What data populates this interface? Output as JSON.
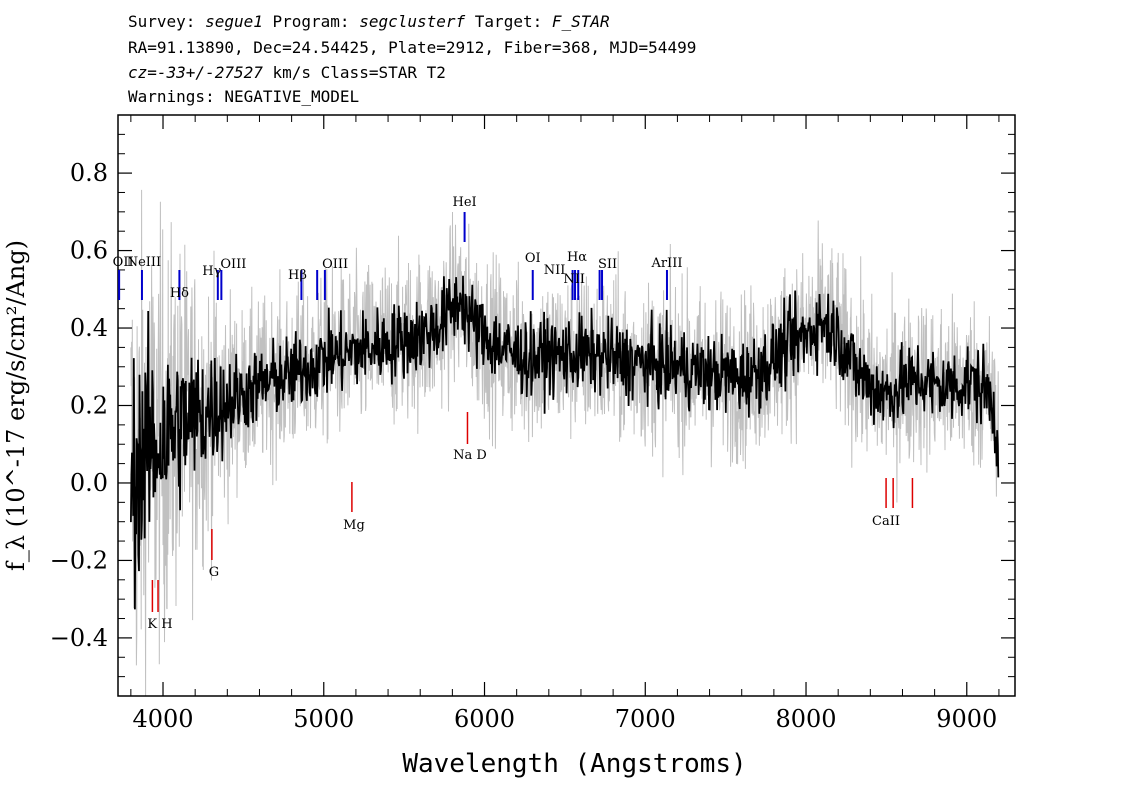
{
  "header": {
    "line1": [
      "Survey: ",
      "segue1",
      " Program: ",
      "segclusterf",
      " Target: ",
      "F_STAR"
    ],
    "line2": "RA=91.13890, Dec=24.54425, Plate=2912, Fiber=368, MJD=54499",
    "line3": [
      "cz=-33+/-27527",
      " km/s Class=STAR T2"
    ],
    "line4": "Warnings: NEGATIVE_MODEL"
  },
  "chart_data": {
    "type": "line",
    "xlabel": "Wavelength (Angstroms)",
    "ylabel": "f_λ (10^-17 erg/s/cm²/Ang)",
    "xlim": [
      3720,
      9300
    ],
    "ylim": [
      -0.55,
      0.95
    ],
    "x_ticks": [
      4000,
      5000,
      6000,
      7000,
      8000,
      9000
    ],
    "y_ticks": [
      -0.4,
      -0.2,
      0.0,
      0.2,
      0.4,
      0.6,
      0.8
    ],
    "x_tick_labels": [
      "4000",
      "5000",
      "6000",
      "7000",
      "8000",
      "9000"
    ],
    "y_tick_labels": [
      "−0.4",
      "−0.2",
      "0.0",
      "0.2",
      "0.4",
      "0.6",
      "0.8"
    ],
    "series": [
      {
        "color": "#000000",
        "x": [
          3800,
          3850,
          3900,
          3950,
          4000,
          4100,
          4200,
          4300,
          4400,
          4500,
          4600,
          4700,
          4800,
          4900,
          5000,
          5100,
          5200,
          5300,
          5400,
          5500,
          5600,
          5700,
          5800,
          5850,
          5900,
          5950,
          6000,
          6100,
          6200,
          6300,
          6400,
          6500,
          6600,
          6700,
          6800,
          6900,
          7000,
          7100,
          7200,
          7300,
          7400,
          7500,
          7600,
          7700,
          7800,
          7900,
          8000,
          8100,
          8200,
          8300,
          8400,
          8500,
          8600,
          8700,
          8800,
          8900,
          9000,
          9100,
          9150,
          9200
        ],
        "y": [
          0.02,
          0.05,
          0.08,
          0.1,
          0.12,
          0.15,
          0.17,
          0.19,
          0.21,
          0.23,
          0.25,
          0.27,
          0.28,
          0.3,
          0.32,
          0.33,
          0.34,
          0.35,
          0.36,
          0.37,
          0.38,
          0.4,
          0.45,
          0.48,
          0.43,
          0.4,
          0.38,
          0.35,
          0.33,
          0.32,
          0.33,
          0.33,
          0.33,
          0.33,
          0.32,
          0.31,
          0.31,
          0.3,
          0.3,
          0.29,
          0.28,
          0.28,
          0.27,
          0.29,
          0.32,
          0.36,
          0.38,
          0.42,
          0.38,
          0.3,
          0.25,
          0.23,
          0.25,
          0.27,
          0.25,
          0.25,
          0.26,
          0.25,
          0.22,
          0.1
        ]
      },
      {
        "color": "#c0c0c0",
        "x": [
          3800,
          3850,
          3900,
          3950,
          4000,
          4100,
          4200,
          4300,
          4400,
          4500,
          4600,
          4700,
          4800,
          4900,
          5000,
          5100,
          5200,
          5300,
          5400,
          5500,
          5600,
          5700,
          5800,
          5850,
          5900,
          5950,
          6000,
          6100,
          6200,
          6300,
          6400,
          6500,
          6600,
          6700,
          6800,
          6900,
          7000,
          7100,
          7200,
          7300,
          7400,
          7500,
          7600,
          7700,
          7800,
          7900,
          8000,
          8100,
          8200,
          8300,
          8400,
          8500,
          8600,
          8700,
          8800,
          8900,
          9000,
          9100,
          9150,
          9200
        ],
        "y": [
          0.02,
          0.05,
          0.08,
          0.1,
          0.12,
          0.15,
          0.17,
          0.19,
          0.21,
          0.23,
          0.25,
          0.27,
          0.28,
          0.3,
          0.32,
          0.33,
          0.34,
          0.35,
          0.36,
          0.37,
          0.38,
          0.4,
          0.45,
          0.48,
          0.43,
          0.4,
          0.38,
          0.35,
          0.33,
          0.32,
          0.33,
          0.33,
          0.33,
          0.33,
          0.32,
          0.31,
          0.31,
          0.3,
          0.3,
          0.29,
          0.28,
          0.28,
          0.27,
          0.29,
          0.32,
          0.36,
          0.38,
          0.42,
          0.38,
          0.3,
          0.25,
          0.23,
          0.25,
          0.27,
          0.25,
          0.25,
          0.26,
          0.25,
          0.22,
          0.1
        ]
      }
    ],
    "emission_lines": [
      {
        "label": "OII",
        "wave": 3727,
        "color": "#0000cc"
      },
      {
        "label": "NeIII",
        "wave": 3869,
        "color": "#0000cc"
      },
      {
        "label": "Hδ",
        "wave": 4102,
        "color": "#0000cc"
      },
      {
        "label": "Hγ",
        "wave": 4341,
        "color": "#0000cc"
      },
      {
        "label": "OIII",
        "wave": 4363,
        "color": "#0000cc"
      },
      {
        "label": "Hβ",
        "wave": 4861,
        "color": "#0000cc"
      },
      {
        "label": "OIII",
        "wave": 4959,
        "color": "#0000cc"
      },
      {
        "label": "OIII",
        "wave": 5007,
        "color": "#0000cc"
      },
      {
        "label": "HeI",
        "wave": 5876,
        "color": "#0000cc"
      },
      {
        "label": "OI",
        "wave": 6300,
        "color": "#0000cc"
      },
      {
        "label": "NII",
        "wave": 6548,
        "color": "#0000cc"
      },
      {
        "label": "Hα",
        "wave": 6563,
        "color": "#0000cc"
      },
      {
        "label": "NII",
        "wave": 6583,
        "color": "#0000cc"
      },
      {
        "label": "SII",
        "wave": 6716,
        "color": "#0000cc"
      },
      {
        "label": "SII",
        "wave": 6731,
        "color": "#0000cc"
      },
      {
        "label": "ArIII",
        "wave": 7135,
        "color": "#0000cc"
      }
    ],
    "absorption_lines": [
      {
        "label": "K",
        "wave": 3934,
        "color": "#dd0000"
      },
      {
        "label": "H",
        "wave": 3969,
        "color": "#dd0000"
      },
      {
        "label": "G",
        "wave": 4304,
        "color": "#dd0000"
      },
      {
        "label": "Mg",
        "wave": 5175,
        "color": "#dd0000"
      },
      {
        "label": "Na D",
        "wave": 5894,
        "color": "#dd0000"
      },
      {
        "label": "CaII",
        "wave": 8498,
        "color": "#dd0000"
      },
      {
        "label": "CaII",
        "wave": 8542,
        "color": "#dd0000"
      },
      {
        "label": "CaII",
        "wave": 8662,
        "color": "#dd0000"
      }
    ]
  }
}
